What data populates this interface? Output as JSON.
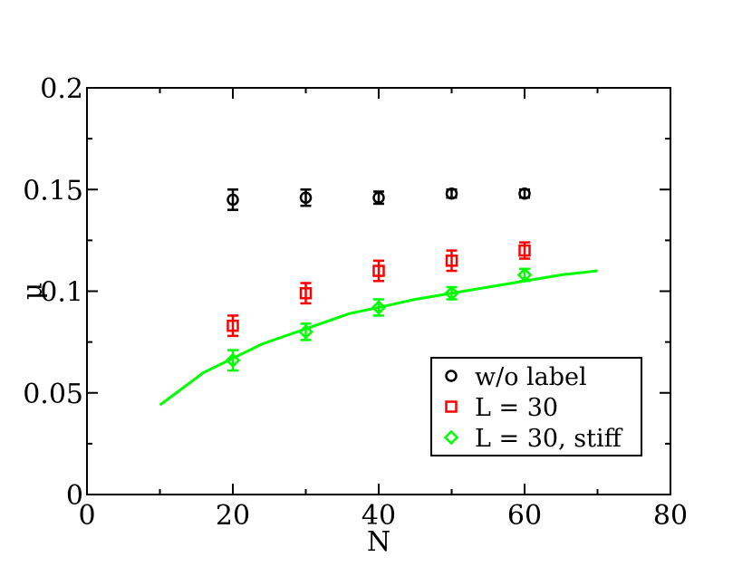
{
  "chart_data": {
    "type": "scatter",
    "xlabel": "N",
    "ylabel": "μ",
    "xlim": [
      0,
      80
    ],
    "ylim": [
      0,
      0.2
    ],
    "xticks": [
      "0",
      "20",
      "40",
      "60",
      "80"
    ],
    "yticks": [
      "0",
      "0.05",
      "0.1",
      "0.15",
      "0.2"
    ],
    "grid": false,
    "legend_position": "bottom-right",
    "series": [
      {
        "name": "w/o label",
        "marker": "circle",
        "color": "#000000",
        "points": [
          {
            "x": 20,
            "y": 0.145,
            "err": 0.005
          },
          {
            "x": 30,
            "y": 0.146,
            "err": 0.004
          },
          {
            "x": 40,
            "y": 0.146,
            "err": 0.003
          },
          {
            "x": 50,
            "y": 0.148,
            "err": 0.002
          },
          {
            "x": 60,
            "y": 0.148,
            "err": 0.002
          }
        ]
      },
      {
        "name": "L = 30",
        "marker": "square",
        "color": "#ff0000",
        "points": [
          {
            "x": 20,
            "y": 0.083,
            "err": 0.005
          },
          {
            "x": 30,
            "y": 0.099,
            "err": 0.005
          },
          {
            "x": 40,
            "y": 0.11,
            "err": 0.005
          },
          {
            "x": 50,
            "y": 0.115,
            "err": 0.005
          },
          {
            "x": 60,
            "y": 0.12,
            "err": 0.004
          }
        ]
      },
      {
        "name": "L = 30, stiff",
        "marker": "diamond",
        "color": "#00ff00",
        "points": [
          {
            "x": 20,
            "y": 0.066,
            "err": 0.005
          },
          {
            "x": 30,
            "y": 0.08,
            "err": 0.004
          },
          {
            "x": 40,
            "y": 0.092,
            "err": 0.004
          },
          {
            "x": 50,
            "y": 0.099,
            "err": 0.003
          },
          {
            "x": 60,
            "y": 0.108,
            "err": 0.003
          }
        ]
      }
    ],
    "fit_curve": {
      "color": "#00ff00",
      "x": [
        10,
        13,
        16,
        20,
        24,
        28,
        32,
        36,
        40,
        45,
        50,
        55,
        60,
        65,
        70
      ],
      "y": [
        0.044,
        0.052,
        0.06,
        0.067,
        0.074,
        0.079,
        0.084,
        0.089,
        0.092,
        0.096,
        0.099,
        0.102,
        0.105,
        0.108,
        0.11
      ]
    }
  }
}
